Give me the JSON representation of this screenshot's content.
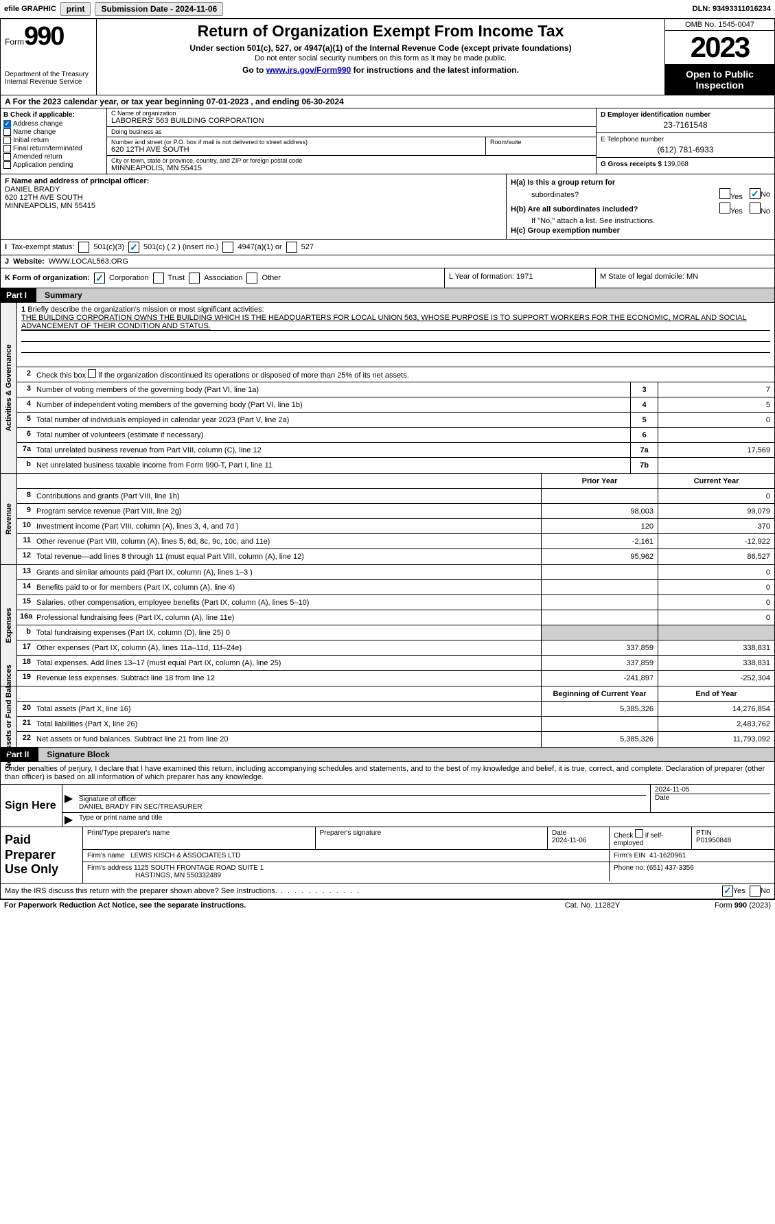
{
  "topbar": {
    "efile": "efile GRAPHIC",
    "print": "print",
    "sub_label": "Submission Date - 2024-11-06",
    "dln": "DLN: 93493311016234"
  },
  "header": {
    "form_word": "Form",
    "form_num": "990",
    "dept": "Department of the Treasury",
    "irs": "Internal Revenue Service",
    "title": "Return of Organization Exempt From Income Tax",
    "sub": "Under section 501(c), 527, or 4947(a)(1) of the Internal Revenue Code (except private foundations)",
    "note": "Do not enter social security numbers on this form as it may be made public.",
    "link_pre": "Go to ",
    "link": "www.irs.gov/Form990",
    "link_post": " for instructions and the latest information.",
    "omb": "OMB No. 1545-0047",
    "year": "2023",
    "open_public": "Open to Public Inspection"
  },
  "period": {
    "text": "For the 2023 calendar year, or tax year beginning 07-01-2023   , and ending 06-30-2024"
  },
  "boxB": {
    "label": "B Check if applicable:",
    "items": [
      {
        "label": "Address change",
        "checked": true
      },
      {
        "label": "Name change",
        "checked": false
      },
      {
        "label": "Initial return",
        "checked": false
      },
      {
        "label": "Final return/terminated",
        "checked": false
      },
      {
        "label": "Amended return",
        "checked": false
      },
      {
        "label": "Application pending",
        "checked": false
      }
    ]
  },
  "boxC": {
    "name_label": "C Name of organization",
    "name": "LABORERS' 563 BUILDING CORPORATION",
    "dba_label": "Doing business as",
    "dba": "",
    "addr_label": "Number and street (or P.O. box if mail is not delivered to street address)",
    "addr": "620 12TH AVE SOUTH",
    "room_label": "Room/suite",
    "city_label": "City or town, state or province, country, and ZIP or foreign postal code",
    "city": "MINNEAPOLIS, MN  55415"
  },
  "boxD": {
    "ein_label": "D Employer identification number",
    "ein": "23-7161548",
    "phone_label": "E Telephone number",
    "phone": "(612) 781-6933",
    "gross_label": "G Gross receipts $",
    "gross": "139,068"
  },
  "boxF": {
    "label": "F  Name and address of principal officer:",
    "name": "DANIEL BRADY",
    "addr1": "620 12TH AVE SOUTH",
    "addr2": "MINNEAPOLIS, MN  55415"
  },
  "boxH": {
    "ha_label": "H(a)  Is this a group return for",
    "ha_sub": "subordinates?",
    "hb_label": "H(b)  Are all subordinates included?",
    "hb_note": "If \"No,\" attach a list. See instructions.",
    "hc_label": "H(c)  Group exemption number",
    "yes": "Yes",
    "no": "No"
  },
  "boxI": {
    "label": "Tax-exempt status:",
    "c3": "501(c)(3)",
    "c_ins": "501(c) ( 2 ) (insert no.)",
    "a1": "4947(a)(1) or",
    "s527": "527"
  },
  "boxJ": {
    "label": "Website:",
    "val": "WWW.LOCAL563.ORG"
  },
  "boxK": {
    "label": "K Form of organization:",
    "corp": "Corporation",
    "trust": "Trust",
    "assoc": "Association",
    "other": "Other"
  },
  "boxL": {
    "label": "L Year of formation: 1971"
  },
  "boxM": {
    "label": "M State of legal domicile: MN"
  },
  "part1": {
    "num": "Part I",
    "title": "Summary"
  },
  "vtabs": {
    "ag": "Activities & Governance",
    "rev": "Revenue",
    "exp": "Expenses",
    "na": "Net Assets or Fund Balances"
  },
  "summary": {
    "l1_label": "Briefly describe the organization's mission or most significant activities:",
    "l1_text": "THE BUILDING CORPORATION OWNS THE BUILDING WHICH IS THE HEADQUARTERS FOR LOCAL UNION 563, WHOSE PURPOSE IS TO SUPPORT WORKERS FOR THE ECONOMIC, MORAL AND SOCIAL ADVANCEMENT OF THEIR CONDITION AND STATUS.",
    "l2": "Check this box      if the organization discontinued its operations or disposed of more than 25% of its net assets.",
    "rows_ag": [
      {
        "n": "3",
        "d": "Number of voting members of the governing body (Part VI, line 1a)",
        "box": "3",
        "v": "7"
      },
      {
        "n": "4",
        "d": "Number of independent voting members of the governing body (Part VI, line 1b)",
        "box": "4",
        "v": "5"
      },
      {
        "n": "5",
        "d": "Total number of individuals employed in calendar year 2023 (Part V, line 2a)",
        "box": "5",
        "v": "0"
      },
      {
        "n": "6",
        "d": "Total number of volunteers (estimate if necessary)",
        "box": "6",
        "v": ""
      },
      {
        "n": "7a",
        "d": "Total unrelated business revenue from Part VIII, column (C), line 12",
        "box": "7a",
        "v": "17,569"
      },
      {
        "n": "b",
        "d": "Net unrelated business taxable income from Form 990-T, Part I, line 11",
        "box": "7b",
        "v": ""
      }
    ],
    "hdr_prior": "Prior Year",
    "hdr_curr": "Current Year",
    "rows_rev": [
      {
        "n": "8",
        "d": "Contributions and grants (Part VIII, line 1h)",
        "p": "",
        "c": "0"
      },
      {
        "n": "9",
        "d": "Program service revenue (Part VIII, line 2g)",
        "p": "98,003",
        "c": "99,079"
      },
      {
        "n": "10",
        "d": "Investment income (Part VIII, column (A), lines 3, 4, and 7d )",
        "p": "120",
        "c": "370"
      },
      {
        "n": "11",
        "d": "Other revenue (Part VIII, column (A), lines 5, 6d, 8c, 9c, 10c, and 11e)",
        "p": "-2,161",
        "c": "-12,922"
      },
      {
        "n": "12",
        "d": "Total revenue—add lines 8 through 11 (must equal Part VIII, column (A), line 12)",
        "p": "95,962",
        "c": "86,527"
      }
    ],
    "rows_exp": [
      {
        "n": "13",
        "d": "Grants and similar amounts paid (Part IX, column (A), lines 1–3 )",
        "p": "",
        "c": "0"
      },
      {
        "n": "14",
        "d": "Benefits paid to or for members (Part IX, column (A), line 4)",
        "p": "",
        "c": "0"
      },
      {
        "n": "15",
        "d": "Salaries, other compensation, employee benefits (Part IX, column (A), lines 5–10)",
        "p": "",
        "c": "0"
      },
      {
        "n": "16a",
        "d": "Professional fundraising fees (Part IX, column (A), line 11e)",
        "p": "",
        "c": "0"
      },
      {
        "n": "b",
        "d": "Total fundraising expenses (Part IX, column (D), line 25) 0",
        "p": "shade",
        "c": "shade"
      },
      {
        "n": "17",
        "d": "Other expenses (Part IX, column (A), lines 11a–11d, 11f–24e)",
        "p": "337,859",
        "c": "338,831"
      },
      {
        "n": "18",
        "d": "Total expenses. Add lines 13–17 (must equal Part IX, column (A), line 25)",
        "p": "337,859",
        "c": "338,831"
      },
      {
        "n": "19",
        "d": "Revenue less expenses. Subtract line 18 from line 12",
        "p": "-241,897",
        "c": "-252,304"
      }
    ],
    "hdr_beg": "Beginning of Current Year",
    "hdr_end": "End of Year",
    "rows_na": [
      {
        "n": "20",
        "d": "Total assets (Part X, line 16)",
        "p": "5,385,326",
        "c": "14,276,854"
      },
      {
        "n": "21",
        "d": "Total liabilities (Part X, line 26)",
        "p": "",
        "c": "2,483,762"
      },
      {
        "n": "22",
        "d": "Net assets or fund balances. Subtract line 21 from line 20",
        "p": "5,385,326",
        "c": "11,793,092"
      }
    ]
  },
  "part2": {
    "num": "Part II",
    "title": "Signature Block"
  },
  "sig": {
    "decl": "Under penalties of perjury, I declare that I have examined this return, including accompanying schedules and statements, and to the best of my knowledge and belief, it is true, correct, and complete. Declaration of preparer (other than officer) is based on all information of which preparer has any knowledge.",
    "sign_here": "Sign Here",
    "sig_of_officer": "Signature of officer",
    "officer": "DANIEL BRADY  FIN SEC/TREASURER",
    "type_name": "Type or print name and title",
    "date_label": "Date",
    "date": "2024-11-05"
  },
  "paid": {
    "label": "Paid Preparer Use Only",
    "prep_name_label": "Print/Type preparer's name",
    "prep_sig_label": "Preparer's signature",
    "date_label": "Date",
    "date": "2024-11-06",
    "check_label": "Check         if self-employed",
    "ptin_label": "PTIN",
    "ptin": "P01950848",
    "firm_label": "Firm's name",
    "firm": "LEWIS KISCH & ASSOCIATES LTD",
    "ein_label": "Firm's EIN",
    "ein": "41-1620961",
    "addr_label": "Firm's address",
    "addr1": "1125 SOUTH FRONTAGE ROAD SUITE 1",
    "addr2": "HASTINGS, MN  550332489",
    "phone_label": "Phone no.",
    "phone": "(651) 437-3356"
  },
  "discuss": {
    "text": "May the IRS discuss this return with the preparer shown above? See Instructions.",
    "yes": "Yes",
    "no": "No"
  },
  "footer": {
    "pra": "For Paperwork Reduction Act Notice, see the separate instructions.",
    "cat": "Cat. No. 11282Y",
    "form": "Form 990 (2023)"
  }
}
